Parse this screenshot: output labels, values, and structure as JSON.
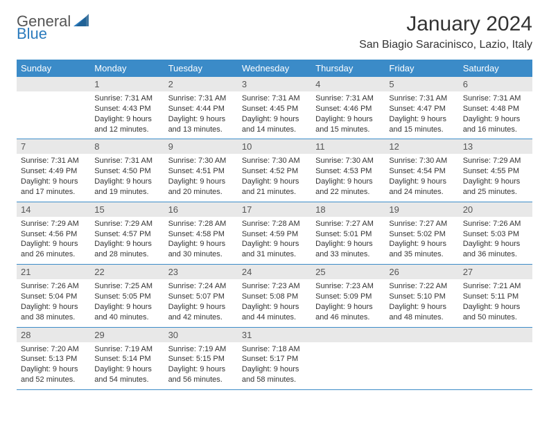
{
  "brand": {
    "part1": "General",
    "part2": "Blue"
  },
  "title": "January 2024",
  "location": "San Biagio Saracinisco, Lazio, Italy",
  "colors": {
    "header_bg": "#3b8bc8",
    "header_text": "#ffffff",
    "daynum_bg": "#e8e8e8",
    "row_border": "#3b8bc8",
    "brand_gray": "#555555",
    "brand_blue": "#2b7bbd"
  },
  "weekdays": [
    "Sunday",
    "Monday",
    "Tuesday",
    "Wednesday",
    "Thursday",
    "Friday",
    "Saturday"
  ],
  "weeks": [
    [
      null,
      {
        "n": "1",
        "sr": "7:31 AM",
        "ss": "4:43 PM",
        "dl": "9 hours and 12 minutes."
      },
      {
        "n": "2",
        "sr": "7:31 AM",
        "ss": "4:44 PM",
        "dl": "9 hours and 13 minutes."
      },
      {
        "n": "3",
        "sr": "7:31 AM",
        "ss": "4:45 PM",
        "dl": "9 hours and 14 minutes."
      },
      {
        "n": "4",
        "sr": "7:31 AM",
        "ss": "4:46 PM",
        "dl": "9 hours and 15 minutes."
      },
      {
        "n": "5",
        "sr": "7:31 AM",
        "ss": "4:47 PM",
        "dl": "9 hours and 15 minutes."
      },
      {
        "n": "6",
        "sr": "7:31 AM",
        "ss": "4:48 PM",
        "dl": "9 hours and 16 minutes."
      }
    ],
    [
      {
        "n": "7",
        "sr": "7:31 AM",
        "ss": "4:49 PM",
        "dl": "9 hours and 17 minutes."
      },
      {
        "n": "8",
        "sr": "7:31 AM",
        "ss": "4:50 PM",
        "dl": "9 hours and 19 minutes."
      },
      {
        "n": "9",
        "sr": "7:30 AM",
        "ss": "4:51 PM",
        "dl": "9 hours and 20 minutes."
      },
      {
        "n": "10",
        "sr": "7:30 AM",
        "ss": "4:52 PM",
        "dl": "9 hours and 21 minutes."
      },
      {
        "n": "11",
        "sr": "7:30 AM",
        "ss": "4:53 PM",
        "dl": "9 hours and 22 minutes."
      },
      {
        "n": "12",
        "sr": "7:30 AM",
        "ss": "4:54 PM",
        "dl": "9 hours and 24 minutes."
      },
      {
        "n": "13",
        "sr": "7:29 AM",
        "ss": "4:55 PM",
        "dl": "9 hours and 25 minutes."
      }
    ],
    [
      {
        "n": "14",
        "sr": "7:29 AM",
        "ss": "4:56 PM",
        "dl": "9 hours and 26 minutes."
      },
      {
        "n": "15",
        "sr": "7:29 AM",
        "ss": "4:57 PM",
        "dl": "9 hours and 28 minutes."
      },
      {
        "n": "16",
        "sr": "7:28 AM",
        "ss": "4:58 PM",
        "dl": "9 hours and 30 minutes."
      },
      {
        "n": "17",
        "sr": "7:28 AM",
        "ss": "4:59 PM",
        "dl": "9 hours and 31 minutes."
      },
      {
        "n": "18",
        "sr": "7:27 AM",
        "ss": "5:01 PM",
        "dl": "9 hours and 33 minutes."
      },
      {
        "n": "19",
        "sr": "7:27 AM",
        "ss": "5:02 PM",
        "dl": "9 hours and 35 minutes."
      },
      {
        "n": "20",
        "sr": "7:26 AM",
        "ss": "5:03 PM",
        "dl": "9 hours and 36 minutes."
      }
    ],
    [
      {
        "n": "21",
        "sr": "7:26 AM",
        "ss": "5:04 PM",
        "dl": "9 hours and 38 minutes."
      },
      {
        "n": "22",
        "sr": "7:25 AM",
        "ss": "5:05 PM",
        "dl": "9 hours and 40 minutes."
      },
      {
        "n": "23",
        "sr": "7:24 AM",
        "ss": "5:07 PM",
        "dl": "9 hours and 42 minutes."
      },
      {
        "n": "24",
        "sr": "7:23 AM",
        "ss": "5:08 PM",
        "dl": "9 hours and 44 minutes."
      },
      {
        "n": "25",
        "sr": "7:23 AM",
        "ss": "5:09 PM",
        "dl": "9 hours and 46 minutes."
      },
      {
        "n": "26",
        "sr": "7:22 AM",
        "ss": "5:10 PM",
        "dl": "9 hours and 48 minutes."
      },
      {
        "n": "27",
        "sr": "7:21 AM",
        "ss": "5:11 PM",
        "dl": "9 hours and 50 minutes."
      }
    ],
    [
      {
        "n": "28",
        "sr": "7:20 AM",
        "ss": "5:13 PM",
        "dl": "9 hours and 52 minutes."
      },
      {
        "n": "29",
        "sr": "7:19 AM",
        "ss": "5:14 PM",
        "dl": "9 hours and 54 minutes."
      },
      {
        "n": "30",
        "sr": "7:19 AM",
        "ss": "5:15 PM",
        "dl": "9 hours and 56 minutes."
      },
      {
        "n": "31",
        "sr": "7:18 AM",
        "ss": "5:17 PM",
        "dl": "9 hours and 58 minutes."
      },
      null,
      null,
      null
    ]
  ]
}
